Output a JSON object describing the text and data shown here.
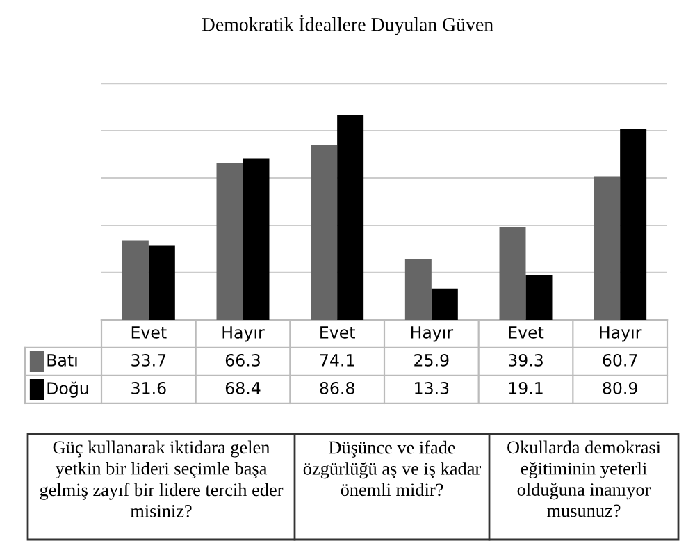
{
  "chart_data": {
    "type": "bar",
    "title": "Demokratik İdeallere Duyulan Güven",
    "categories": [
      "Evet",
      "Hayır",
      "Evet",
      "Hayır",
      "Evet",
      "Hayır"
    ],
    "series": [
      {
        "name": "Batı",
        "color": "#666666",
        "values": [
          33.7,
          66.3,
          74.1,
          25.9,
          39.3,
          60.7
        ]
      },
      {
        "name": "Doğu",
        "color": "#000000",
        "values": [
          31.6,
          68.4,
          86.8,
          13.3,
          19.1,
          80.9
        ]
      }
    ],
    "ylim": [
      0,
      100
    ],
    "yticks": [
      {
        "value": 0,
        "label": null
      },
      {
        "value": 20,
        "label": null
      },
      {
        "value": 40,
        "label": null
      },
      {
        "value": 60,
        "label": null
      },
      {
        "value": 80,
        "label": null
      },
      {
        "value": 100,
        "label": null
      }
    ],
    "grid": "y",
    "legend": "left",
    "data_labels": true,
    "tick_labels": "x",
    "annotations": [
      "Güç kullanarak iktidara gelen yetkin bir lideri seçimle başa gelmiş zayıf bir lidere tercih eder misiniz?",
      "Düşünce ve ifade özgürlüğü aş ve iş kadar önemli midir?",
      "Okullarda demokrasi eğitiminin yeterli olduğuna inanıyor musunuz?"
    ]
  }
}
